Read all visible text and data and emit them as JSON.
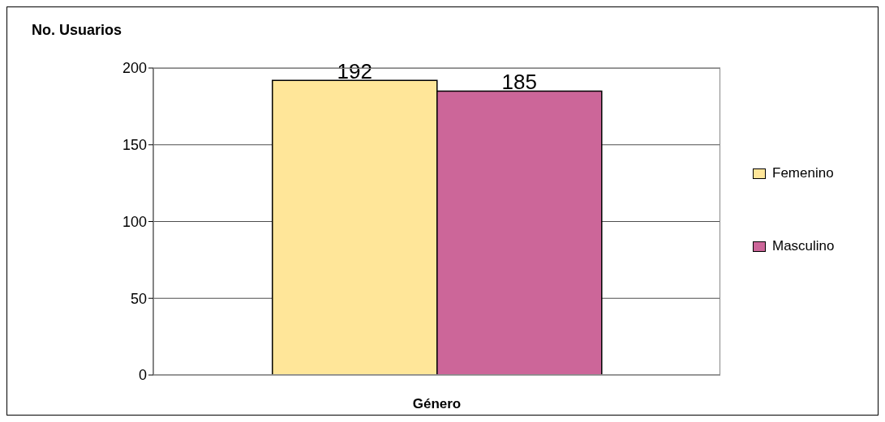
{
  "chart_data": {
    "type": "bar",
    "xlabel": "Género",
    "ylabel": "No. Usuarios",
    "categories": [
      null
    ],
    "series": [
      {
        "name": "Femenino",
        "color": "#ffe699",
        "values": [
          192
        ]
      },
      {
        "name": "Masculino",
        "color": "#cc6699",
        "values": [
          185
        ]
      }
    ],
    "ylim": [
      0,
      200
    ],
    "yticks": [
      0,
      50,
      100,
      150,
      200
    ],
    "grid": "y",
    "legend": "right",
    "data_labels": true
  }
}
